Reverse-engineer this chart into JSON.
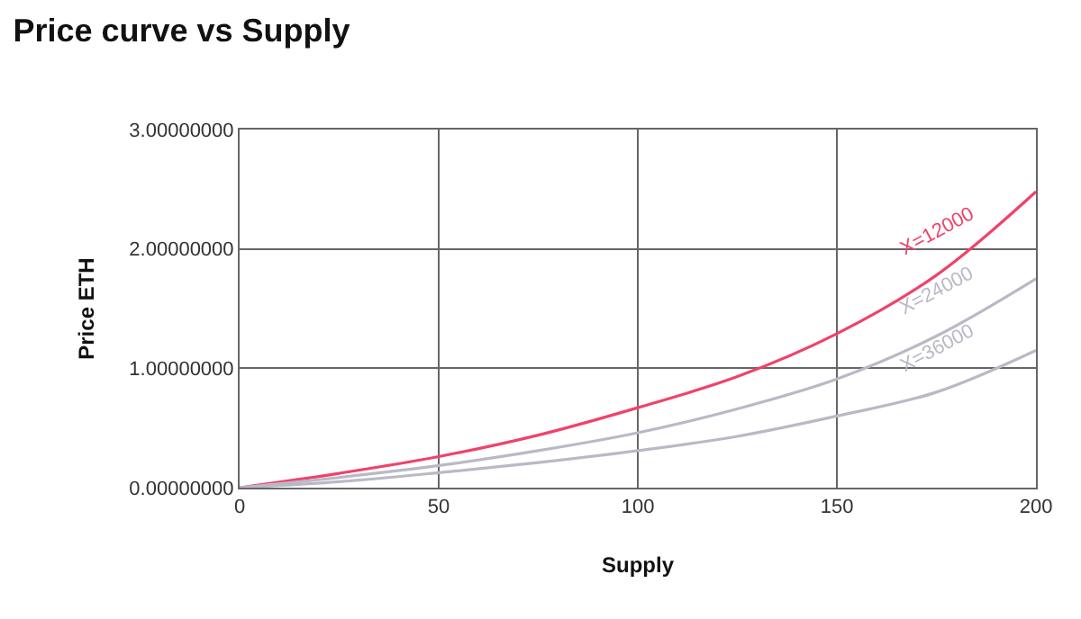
{
  "chart_data": {
    "type": "line",
    "title": "Price curve vs Supply",
    "xlabel": "Supply",
    "ylabel": "Price ETH",
    "x": [
      0,
      25,
      50,
      75,
      100,
      125,
      150,
      175,
      200
    ],
    "series": [
      {
        "name": "X=12000",
        "color": "#f0426a",
        "values": [
          0,
          0.12,
          0.26,
          0.44,
          0.67,
          0.93,
          1.29,
          1.78,
          2.48
        ]
      },
      {
        "name": "X=24000",
        "color": "#b9b9c6",
        "values": [
          0,
          0.085,
          0.185,
          0.31,
          0.46,
          0.66,
          0.91,
          1.27,
          1.75
        ]
      },
      {
        "name": "X=36000",
        "color": "#b9b9c6",
        "values": [
          0,
          0.05,
          0.125,
          0.21,
          0.31,
          0.43,
          0.6,
          0.8,
          1.15
        ]
      }
    ],
    "xlim": [
      0,
      200
    ],
    "xticks": [
      0,
      50,
      100,
      150,
      200
    ],
    "ylim": [
      0,
      3
    ],
    "yticks": [
      {
        "value": 0,
        "label": "0.00000000"
      },
      {
        "value": 1,
        "label": "1.00000000"
      },
      {
        "value": 2,
        "label": "2.00000000"
      },
      {
        "value": 3,
        "label": "3.00000000"
      }
    ],
    "grid": true,
    "legend": false,
    "marker": "none",
    "line_style": "solid"
  }
}
